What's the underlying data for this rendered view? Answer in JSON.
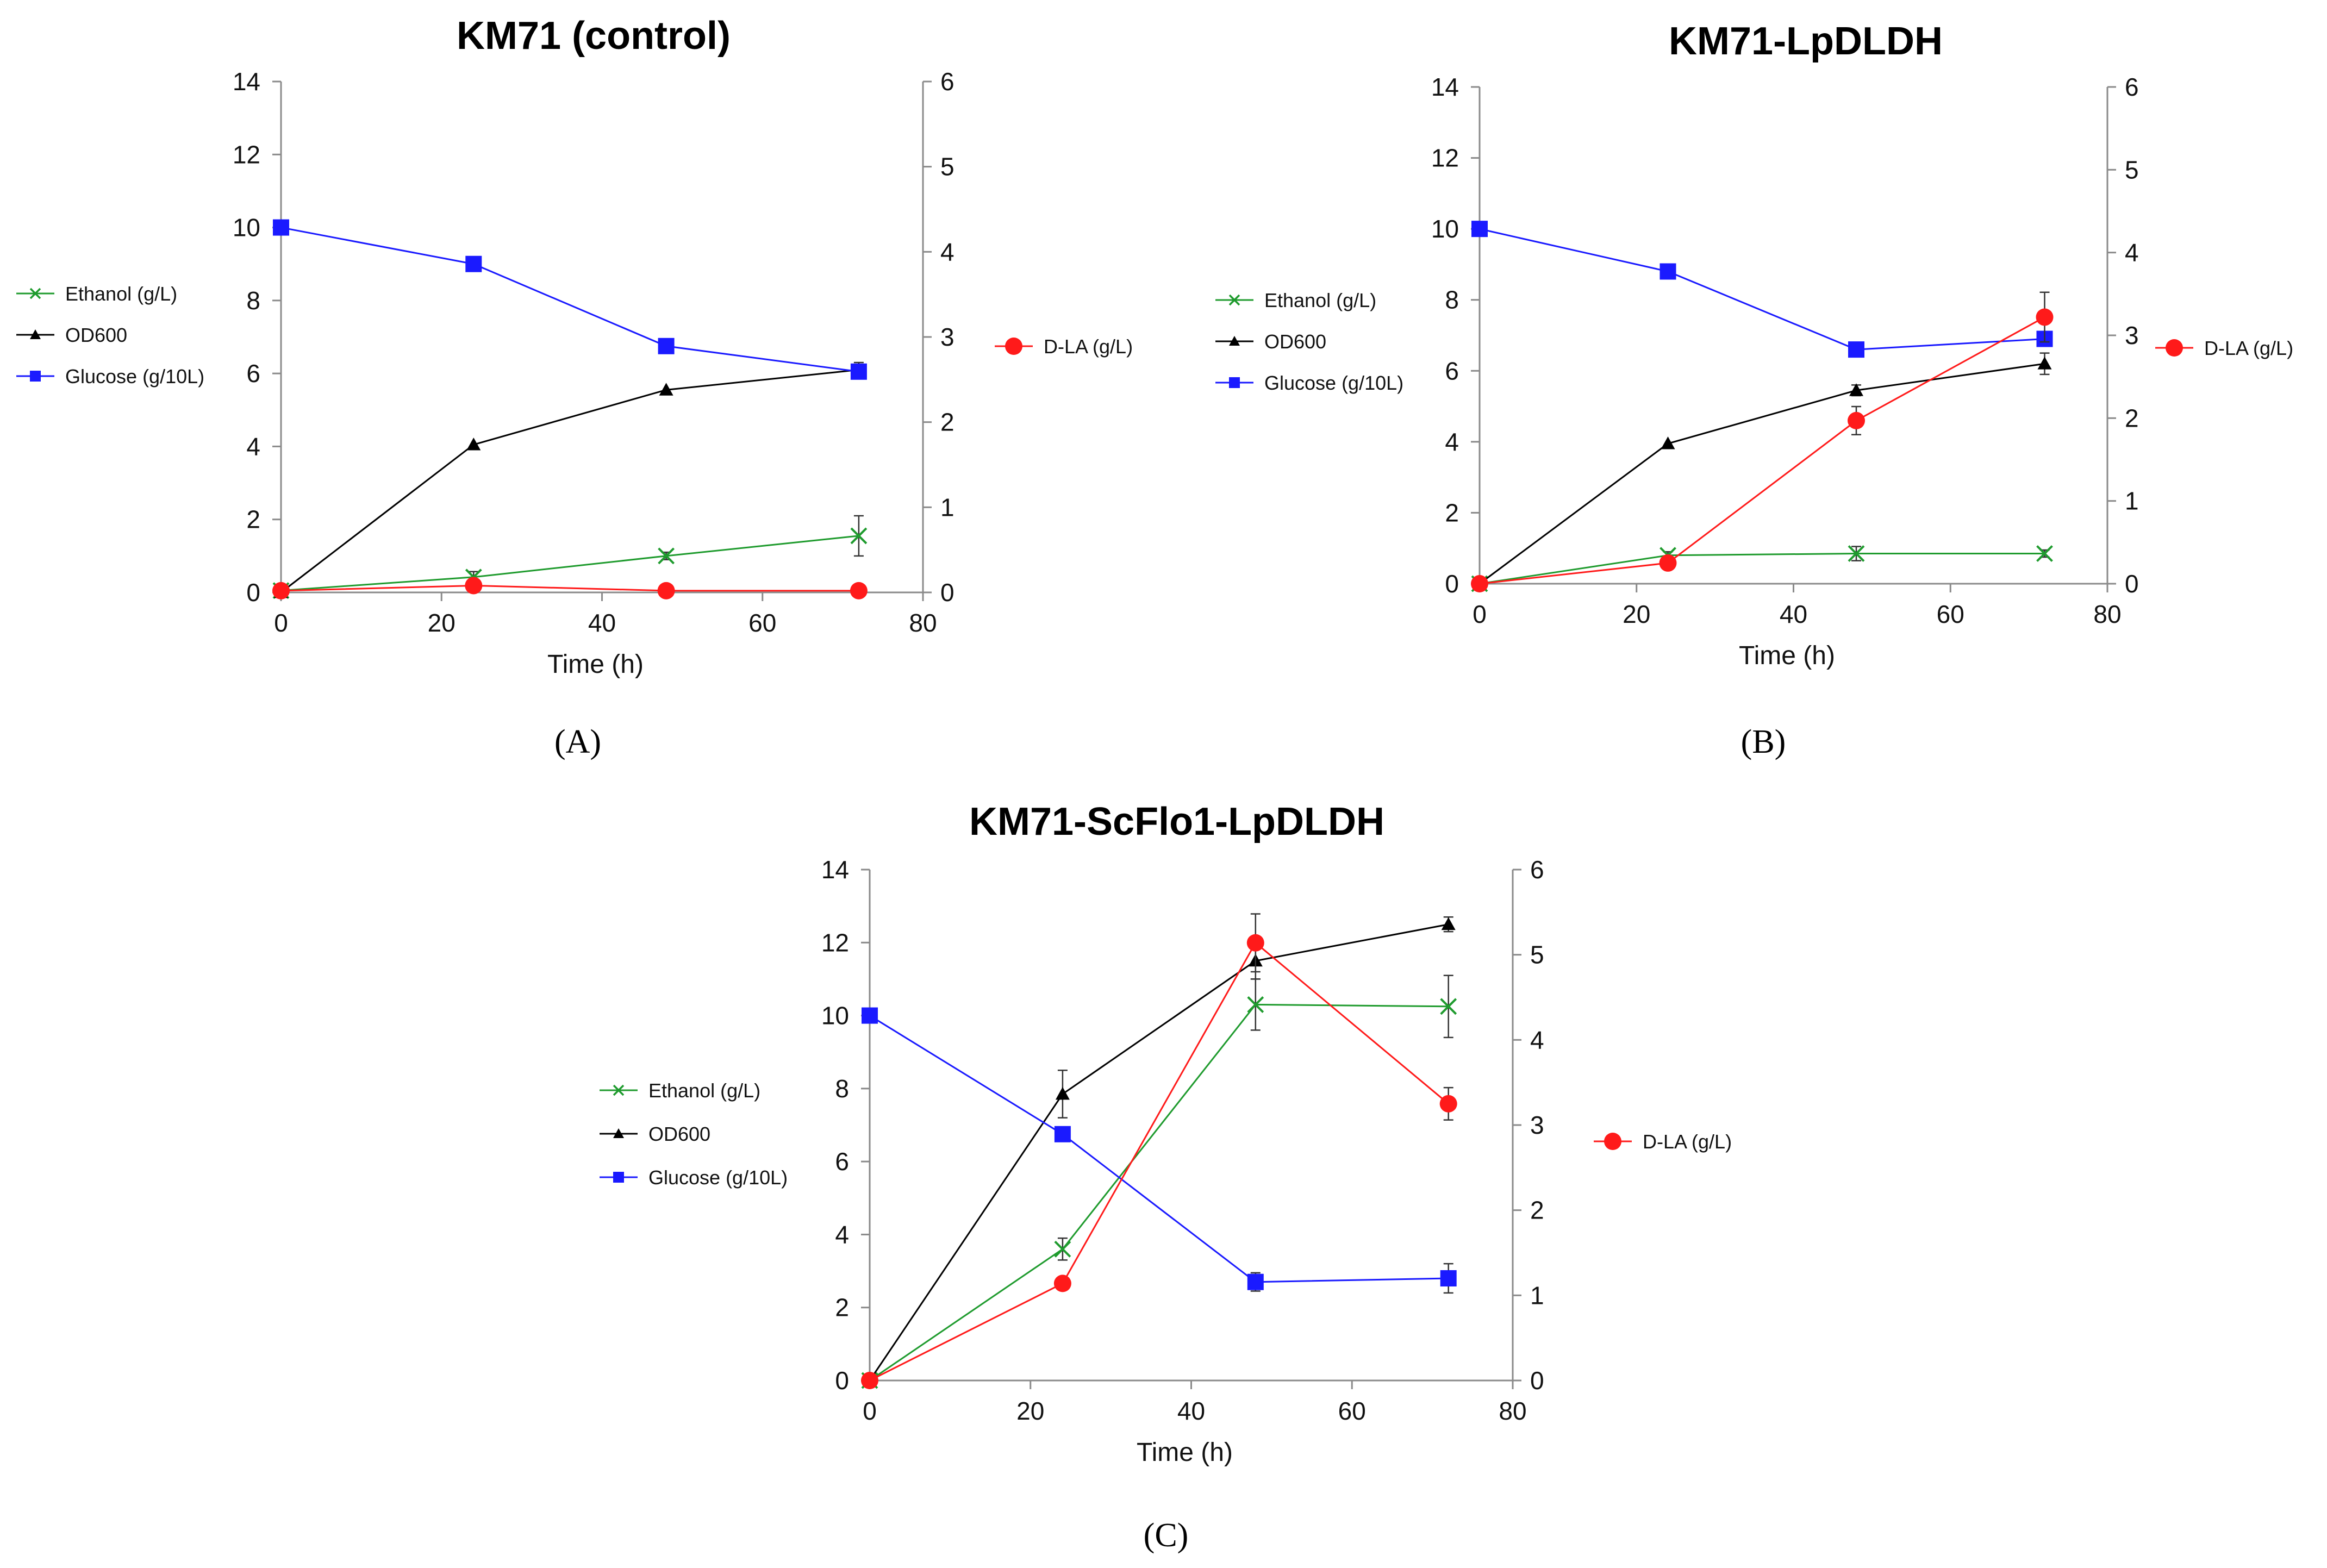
{
  "chart_data": [
    {
      "type": "line",
      "title": "KM71 (control)",
      "panel_label": "(A)",
      "xlabel": "Time (h)",
      "xlim": [
        0,
        80
      ],
      "xticks": [
        0,
        20,
        40,
        60,
        80
      ],
      "ylim": [
        0,
        14
      ],
      "yticks": [
        0,
        2,
        4,
        6,
        8,
        10,
        12,
        14
      ],
      "y2lim": [
        0,
        6
      ],
      "y2ticks": [
        0,
        1,
        2,
        3,
        4,
        5,
        6
      ],
      "x": [
        0,
        24,
        48,
        72
      ],
      "series": [
        {
          "name": "Ethanol (g/L)",
          "axis": "left",
          "marker": "x",
          "color": "#1f9b2e",
          "values": [
            0.05,
            0.42,
            1.0,
            1.55
          ],
          "errors": [
            0,
            0.15,
            0.1,
            0.55
          ]
        },
        {
          "name": "OD600",
          "axis": "left",
          "marker": "triangle",
          "color": "#000000",
          "values": [
            0.0,
            4.05,
            5.55,
            6.1
          ],
          "errors": [
            0,
            0,
            0,
            0.2
          ]
        },
        {
          "name": "Glucose (g/10L)",
          "axis": "left",
          "marker": "square",
          "color": "#1a1aff",
          "values": [
            10.0,
            9.0,
            6.75,
            6.05
          ],
          "errors": [
            0,
            0,
            0,
            0
          ]
        },
        {
          "name": "D-LA (g/L)",
          "axis": "right",
          "marker": "circle",
          "color": "#ff1a1a",
          "values": [
            0.02,
            0.08,
            0.02,
            0.02
          ],
          "errors": [
            0,
            0,
            0,
            0
          ]
        }
      ]
    },
    {
      "type": "line",
      "title": "KM71-LpDLDH",
      "panel_label": "(B)",
      "xlabel": "Time (h)",
      "xlim": [
        0,
        80
      ],
      "xticks": [
        0,
        20,
        40,
        60,
        80
      ],
      "ylim": [
        0,
        14
      ],
      "yticks": [
        0,
        2,
        4,
        6,
        8,
        10,
        12,
        14
      ],
      "y2lim": [
        0,
        6
      ],
      "y2ticks": [
        0,
        1,
        2,
        3,
        4,
        5,
        6
      ],
      "x": [
        0,
        24,
        48,
        72
      ],
      "series": [
        {
          "name": "Ethanol (g/L)",
          "axis": "left",
          "marker": "x",
          "color": "#1f9b2e",
          "values": [
            0.0,
            0.8,
            0.85,
            0.85
          ],
          "errors": [
            0,
            0.1,
            0.2,
            0.1
          ]
        },
        {
          "name": "OD600",
          "axis": "left",
          "marker": "triangle",
          "color": "#000000",
          "values": [
            0.0,
            3.95,
            5.45,
            6.2
          ],
          "errors": [
            0,
            0,
            0.15,
            0.3
          ]
        },
        {
          "name": "Glucose (g/10L)",
          "axis": "left",
          "marker": "square",
          "color": "#1a1aff",
          "values": [
            10.0,
            8.8,
            6.6,
            6.9
          ],
          "errors": [
            0,
            0,
            0,
            0
          ]
        },
        {
          "name": "D-LA (g/L)",
          "axis": "right",
          "marker": "circle",
          "color": "#ff1a1a",
          "values": [
            0.0,
            0.25,
            1.97,
            3.22
          ],
          "errors": [
            0,
            0,
            0.17,
            0.3
          ]
        }
      ]
    },
    {
      "type": "line",
      "title": "KM71-ScFlo1-LpDLDH",
      "panel_label": "(C)",
      "xlabel": "Time (h)",
      "xlim": [
        0,
        80
      ],
      "xticks": [
        0,
        20,
        40,
        60,
        80
      ],
      "ylim": [
        0,
        14
      ],
      "yticks": [
        0,
        2,
        4,
        6,
        8,
        10,
        12,
        14
      ],
      "y2lim": [
        0,
        6
      ],
      "y2ticks": [
        0,
        1,
        2,
        3,
        4,
        5,
        6
      ],
      "x": [
        0,
        24,
        48,
        72
      ],
      "series": [
        {
          "name": "Ethanol (g/L)",
          "axis": "left",
          "marker": "x",
          "color": "#1f9b2e",
          "values": [
            0.0,
            3.6,
            10.3,
            10.25
          ],
          "errors": [
            0,
            0.3,
            0.7,
            0.85
          ]
        },
        {
          "name": "OD600",
          "axis": "left",
          "marker": "triangle",
          "color": "#000000",
          "values": [
            0.0,
            7.85,
            11.5,
            12.5
          ],
          "errors": [
            0,
            0.65,
            0.5,
            0.2
          ]
        },
        {
          "name": "Glucose (g/10L)",
          "axis": "left",
          "marker": "square",
          "color": "#1a1aff",
          "values": [
            10.0,
            6.75,
            2.7,
            2.8
          ],
          "errors": [
            0,
            0,
            0.25,
            0.4
          ]
        },
        {
          "name": "D-LA (g/L)",
          "axis": "right",
          "marker": "circle",
          "color": "#ff1a1a",
          "values": [
            0.0,
            1.14,
            5.14,
            3.25
          ],
          "errors": [
            0,
            0,
            0.34,
            0.19
          ]
        }
      ]
    }
  ]
}
